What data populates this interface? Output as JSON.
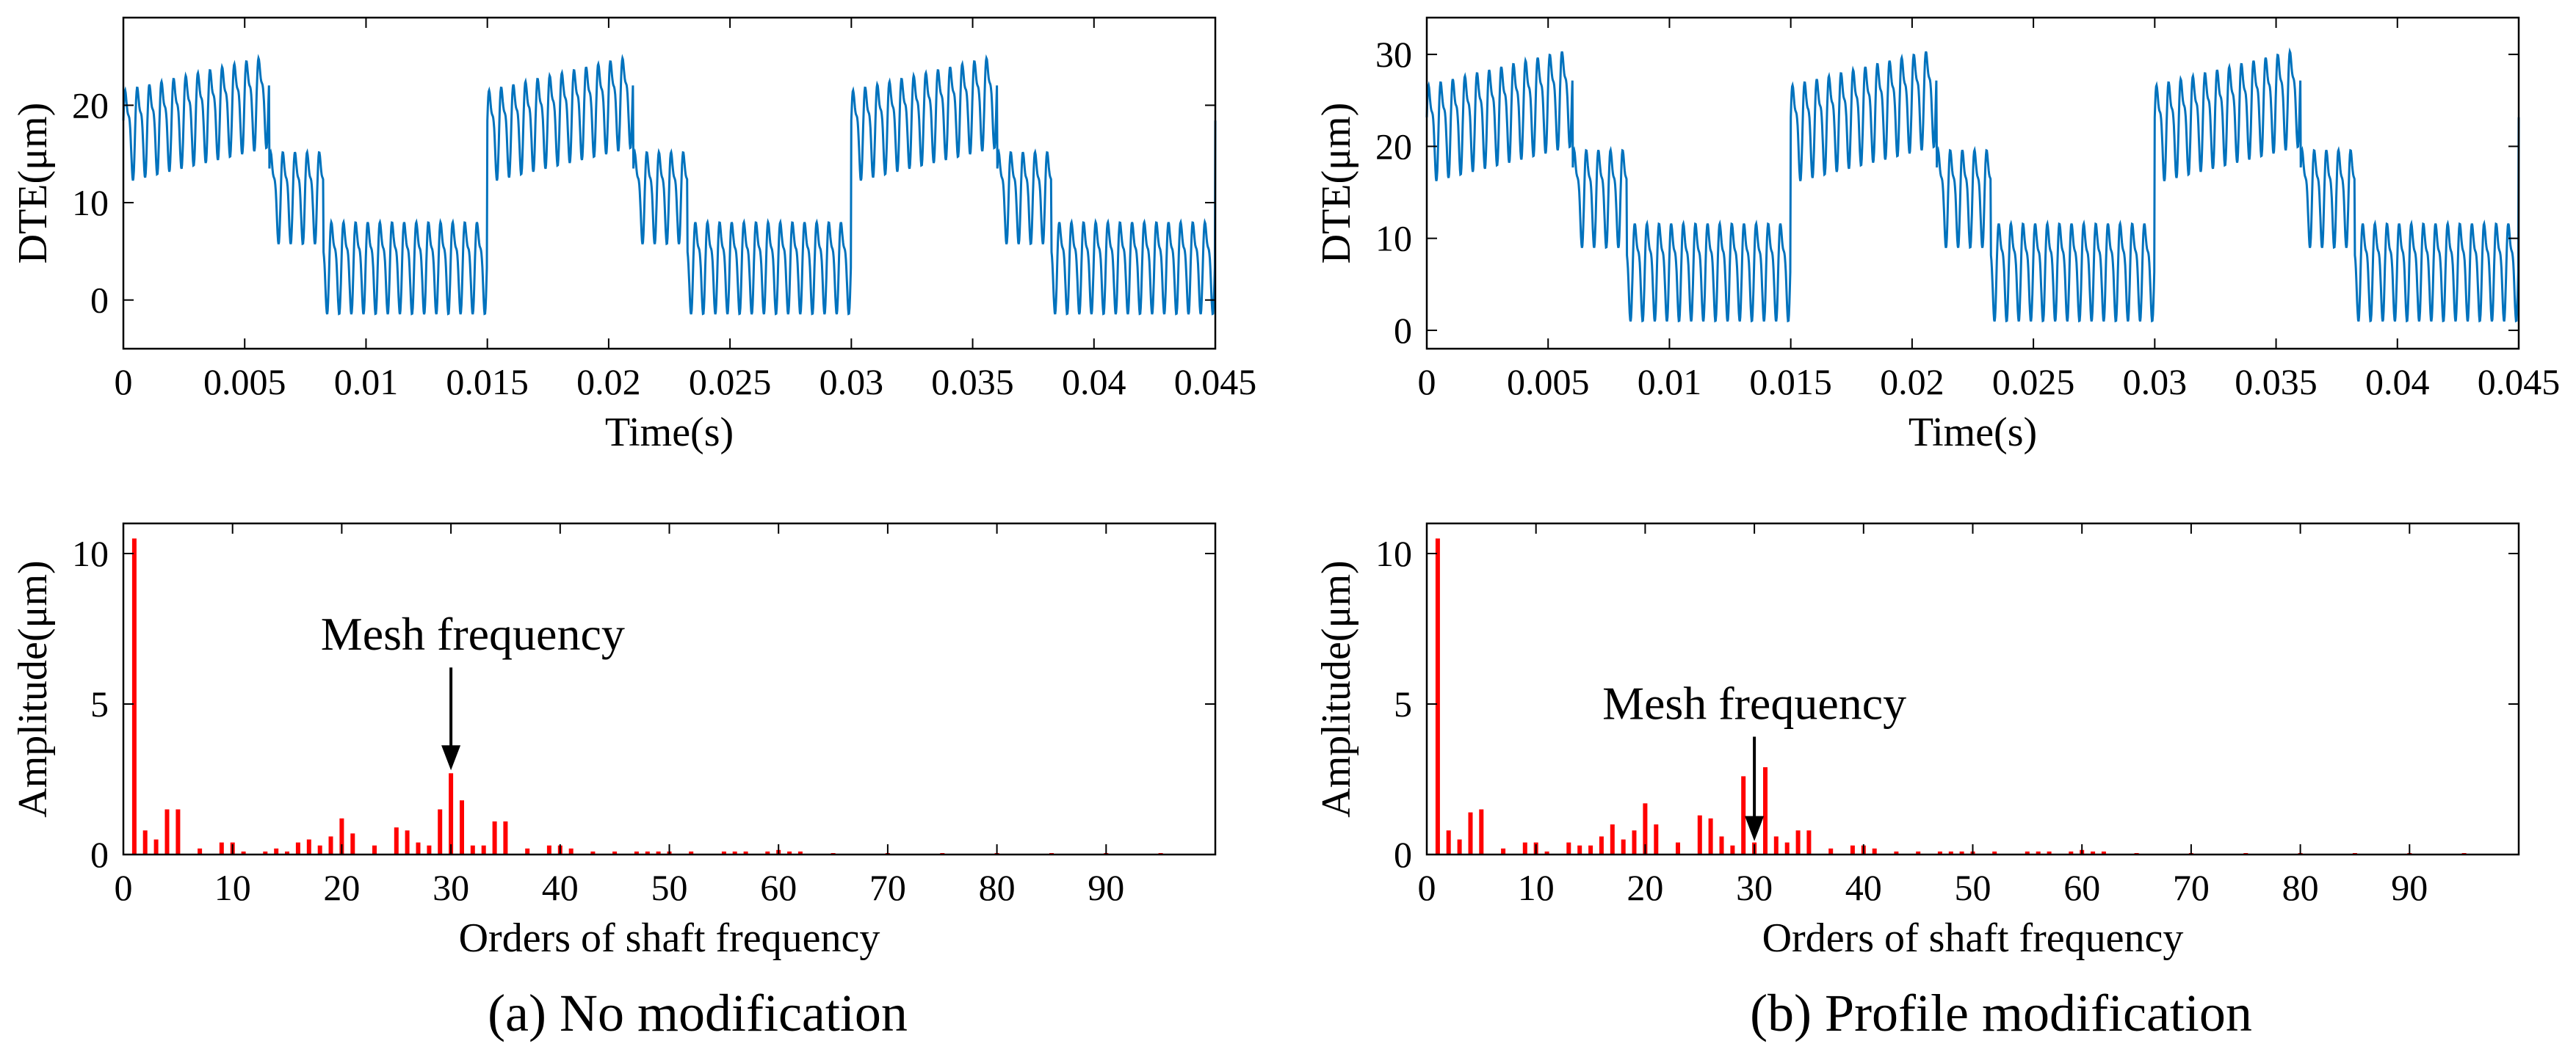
{
  "captions": {
    "left": "(a) No modification",
    "right": "(b) Profile modification"
  },
  "colors": {
    "time_line": "#0072BD",
    "spectrum_bar": "#FF0000",
    "axes": "#000000"
  },
  "chart_data": [
    {
      "id": "a-time",
      "type": "line",
      "xlabel": "Time(s)",
      "ylabel": "DTE(μm)",
      "xlim": [
        0,
        0.045
      ],
      "ylim": [
        -5,
        29
      ],
      "xticks": [
        0,
        0.005,
        0.01,
        0.015,
        0.02,
        0.025,
        0.03,
        0.035,
        0.04,
        0.045
      ],
      "xtick_labels": [
        "0",
        "0.005",
        "0.01",
        "0.015",
        "0.02",
        "0.025",
        "0.03",
        "0.035",
        "0.04",
        "0.045"
      ],
      "yticks": [
        0,
        10,
        20
      ],
      "ytick_labels": [
        "0",
        "10",
        "20"
      ],
      "grid": false,
      "signal": {
        "mean": 12,
        "square_amplitude": 9,
        "period": 0.015,
        "ripple_amplitude": 4,
        "mesh_period": 0.0005
      },
      "series": [
        {
          "x": [
            0,
            0.0015,
            0.003,
            0.0045,
            0.006,
            0.0075,
            0.009,
            0.0105,
            0.012,
            0.0135,
            0.015,
            0.0165,
            0.018,
            0.0195,
            0.021,
            0.0225,
            0.024,
            0.0255,
            0.027,
            0.0285,
            0.03,
            0.0315,
            0.033,
            0.0345,
            0.036,
            0.0375,
            0.039,
            0.0405,
            0.042,
            0.0435,
            0.045
          ],
          "y": [
            14,
            20,
            23,
            26,
            12,
            10,
            2,
            1,
            0,
            3,
            14,
            20,
            23,
            26,
            12,
            10,
            2,
            1,
            0,
            3,
            14,
            20,
            23,
            26,
            12,
            10,
            2,
            1,
            0,
            3,
            8
          ]
        }
      ]
    },
    {
      "id": "b-time",
      "type": "line",
      "xlabel": "Time(s)",
      "ylabel": "DTE(μm)",
      "xlim": [
        0,
        0.045
      ],
      "ylim": [
        -2,
        34
      ],
      "xticks": [
        0,
        0.005,
        0.01,
        0.015,
        0.02,
        0.025,
        0.03,
        0.035,
        0.04,
        0.045
      ],
      "xtick_labels": [
        "0",
        "0.005",
        "0.01",
        "0.015",
        "0.02",
        "0.025",
        "0.03",
        "0.035",
        "0.04",
        "0.045"
      ],
      "yticks": [
        0,
        10,
        20,
        30
      ],
      "ytick_labels": [
        "0",
        "10",
        "20",
        "30"
      ],
      "grid": false,
      "signal": {
        "mean": 16,
        "square_amplitude": 10,
        "period": 0.015,
        "ripple_amplitude": 4.5,
        "mesh_period": 0.0005
      },
      "series": [
        {
          "x": [
            0,
            0.0015,
            0.003,
            0.0045,
            0.006,
            0.0075,
            0.009,
            0.0105,
            0.012,
            0.0135,
            0.015,
            0.0165,
            0.018,
            0.0195,
            0.021,
            0.0225,
            0.024,
            0.0255,
            0.027,
            0.0285,
            0.03,
            0.0315,
            0.033,
            0.0345,
            0.036,
            0.0375,
            0.039,
            0.0405,
            0.042,
            0.0435,
            0.045
          ],
          "y": [
            18,
            25,
            27,
            30,
            16,
            14,
            5,
            6,
            6,
            8,
            18,
            25,
            27,
            30,
            16,
            14,
            5,
            6,
            6,
            8,
            18,
            25,
            27,
            30,
            16,
            14,
            5,
            6,
            6,
            8,
            12
          ]
        }
      ]
    },
    {
      "id": "a-spectrum",
      "type": "bar",
      "xlabel": "Orders of shaft frequency",
      "ylabel": "Amplitude(μm)",
      "xlim": [
        0,
        100
      ],
      "ylim": [
        0,
        11
      ],
      "xticks": [
        0,
        10,
        20,
        30,
        40,
        50,
        60,
        70,
        80,
        90
      ],
      "xtick_labels": [
        "0",
        "10",
        "20",
        "30",
        "40",
        "50",
        "60",
        "70",
        "80",
        "90"
      ],
      "yticks": [
        0,
        5,
        10
      ],
      "ytick_labels": [
        "0",
        "5",
        "10"
      ],
      "grid": false,
      "annotation": {
        "text": "Mesh frequency",
        "x": 30,
        "y": 2.7,
        "label_x": 32,
        "label_y": 6.8
      },
      "x": [
        1,
        2,
        3,
        4,
        5,
        7,
        9,
        10,
        11,
        13,
        14,
        15,
        16,
        17,
        18,
        19,
        20,
        21,
        23,
        25,
        26,
        27,
        28,
        29,
        30,
        31,
        32,
        33,
        34,
        35,
        37,
        39,
        40,
        41,
        43,
        45,
        47,
        48,
        49,
        50,
        52,
        55,
        56,
        57,
        59,
        60,
        61,
        62,
        65,
        70,
        75,
        80,
        85,
        90,
        95
      ],
      "values": [
        10.5,
        0.8,
        0.5,
        1.5,
        1.5,
        0.2,
        0.4,
        0.4,
        0.1,
        0.1,
        0.2,
        0.1,
        0.4,
        0.5,
        0.3,
        0.6,
        1.2,
        0.7,
        0.3,
        0.9,
        0.8,
        0.4,
        0.3,
        1.5,
        2.7,
        1.8,
        0.3,
        0.3,
        1.1,
        1.1,
        0.2,
        0.3,
        0.3,
        0.2,
        0.1,
        0.1,
        0.1,
        0.1,
        0.1,
        0.1,
        0.1,
        0.1,
        0.1,
        0.1,
        0.1,
        0.15,
        0.1,
        0.1,
        0.05,
        0.05,
        0.05,
        0.05,
        0.05,
        0.05,
        0.05
      ]
    },
    {
      "id": "b-spectrum",
      "type": "bar",
      "xlabel": "Orders of shaft frequency",
      "ylabel": "Amplitude(μm)",
      "xlim": [
        0,
        100
      ],
      "ylim": [
        0,
        11
      ],
      "xticks": [
        0,
        10,
        20,
        30,
        40,
        50,
        60,
        70,
        80,
        90
      ],
      "xtick_labels": [
        "0",
        "10",
        "20",
        "30",
        "40",
        "50",
        "60",
        "70",
        "80",
        "90"
      ],
      "yticks": [
        0,
        5,
        10
      ],
      "ytick_labels": [
        "0",
        "5",
        "10"
      ],
      "grid": false,
      "annotation": {
        "text": "Mesh frequency",
        "x": 30,
        "y": 0.35,
        "label_x": 30,
        "label_y": 4.5
      },
      "x": [
        1,
        2,
        3,
        4,
        5,
        7,
        9,
        10,
        11,
        13,
        14,
        15,
        16,
        17,
        18,
        19,
        20,
        21,
        23,
        25,
        26,
        27,
        28,
        29,
        30,
        31,
        32,
        33,
        34,
        35,
        37,
        39,
        40,
        41,
        43,
        45,
        47,
        48,
        49,
        50,
        52,
        55,
        56,
        57,
        59,
        60,
        61,
        62,
        65,
        70,
        75,
        80,
        85,
        90,
        95
      ],
      "values": [
        10.5,
        0.8,
        0.5,
        1.4,
        1.5,
        0.2,
        0.4,
        0.4,
        0.1,
        0.4,
        0.3,
        0.3,
        0.6,
        1.0,
        0.5,
        0.8,
        1.7,
        1.0,
        0.4,
        1.3,
        1.2,
        0.6,
        0.3,
        2.6,
        0.4,
        2.9,
        0.6,
        0.4,
        0.8,
        0.8,
        0.2,
        0.3,
        0.3,
        0.2,
        0.1,
        0.1,
        0.1,
        0.1,
        0.1,
        0.1,
        0.1,
        0.1,
        0.1,
        0.1,
        0.1,
        0.15,
        0.1,
        0.1,
        0.05,
        0.05,
        0.05,
        0.05,
        0.05,
        0.05,
        0.05
      ]
    }
  ]
}
